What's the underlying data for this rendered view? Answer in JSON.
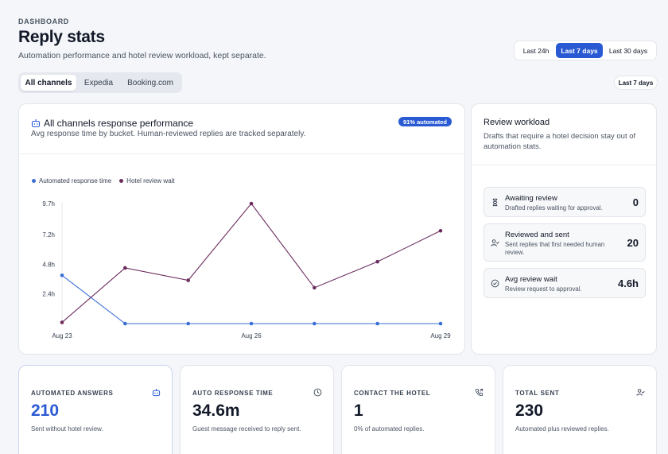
{
  "header": {
    "eyebrow": "DASHBOARD",
    "title": "Reply stats",
    "subtitle": "Automation performance and hotel review workload, kept separate."
  },
  "time_ranges": {
    "options": [
      "Last 24h",
      "Last 7 days",
      "Last 30 days"
    ],
    "selected": "Last 7 days"
  },
  "channel_tabs": {
    "items": [
      "All channels",
      "Expedia",
      "Booking.com"
    ],
    "selected": "All channels"
  },
  "range_pill": "Last 7 days",
  "performance": {
    "icon": "robot-icon",
    "title": "All channels response performance",
    "subtitle": "Avg response time by bucket. Human-reviewed replies are tracked separately.",
    "badge": "91% automated"
  },
  "chart_data": {
    "type": "line",
    "x": [
      "Aug 23",
      "Aug 24",
      "Aug 25",
      "Aug 26",
      "Aug 27",
      "Aug 28",
      "Aug 29"
    ],
    "x_tick_labels": [
      "Aug 23",
      "Aug 26",
      "Aug 29"
    ],
    "y_ticks": [
      "9.7h",
      "7.2h",
      "4.8h",
      "2.4h"
    ],
    "y_tick_values": [
      9.7,
      7.2,
      4.8,
      2.4
    ],
    "ylim": [
      0,
      9.7
    ],
    "grid": false,
    "legend": "top-left",
    "series": [
      {
        "name": "Automated response time",
        "color": "#3b6fd6",
        "values": [
          3.9,
          0,
          0,
          0,
          0,
          0,
          0
        ]
      },
      {
        "name": "Hotel review wait",
        "color": "#6b2d5e",
        "values": [
          0.1,
          4.5,
          3.5,
          9.7,
          2.9,
          5.0,
          7.5
        ]
      }
    ]
  },
  "review": {
    "title": "Review workload",
    "subtitle": "Drafts that require a hotel decision stay out of automation stats.",
    "items": [
      {
        "icon": "hourglass-icon",
        "title": "Awaiting review",
        "desc": "Drafted replies waiting for approval.",
        "value": "0"
      },
      {
        "icon": "user-check-icon",
        "title": "Reviewed and sent",
        "desc": "Sent replies that first needed human review.",
        "value": "20"
      },
      {
        "icon": "check-circle-icon",
        "title": "Avg review wait",
        "desc": "Review request to approval.",
        "value": "4.6h"
      }
    ]
  },
  "stats": [
    {
      "label": "AUTOMATED ANSWERS",
      "value": "210",
      "desc": "Sent without hotel review.",
      "icon": "robot-icon",
      "accent": "#2a5ad3"
    },
    {
      "label": "AUTO RESPONSE TIME",
      "value": "34.6m",
      "desc": "Guest message received to reply sent.",
      "icon": "clock-icon"
    },
    {
      "label": "CONTACT THE HOTEL",
      "value": "1",
      "desc": "0% of automated replies.",
      "icon": "phone-icon"
    },
    {
      "label": "TOTAL SENT",
      "value": "230",
      "desc": "Automated plus reviewed replies.",
      "icon": "user-check-icon"
    }
  ],
  "colors": {
    "accent": "#2a5ad3",
    "series_automated": "#3b6fd6",
    "series_review": "#6b2d5e"
  }
}
